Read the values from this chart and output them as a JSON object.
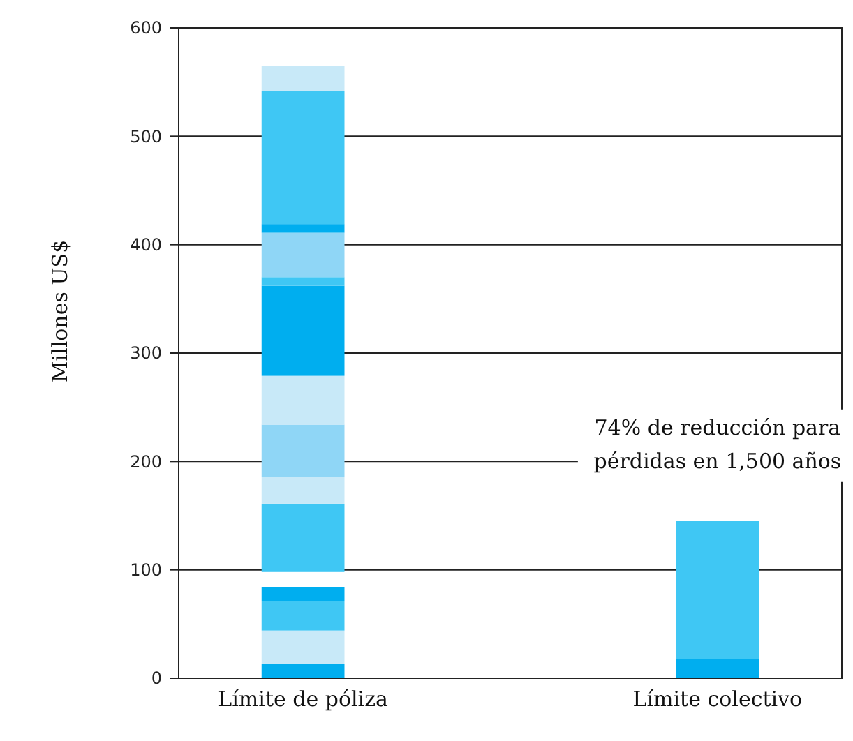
{
  "chart_data": {
    "type": "bar",
    "ylabel": "Millones US$",
    "categories": [
      "Límite de póliza",
      "Límite colectivo"
    ],
    "series": [
      {
        "colors": [
          "#00aeef",
          "#00aeef"
        ],
        "base": [
          0,
          0
        ],
        "values": [
          13,
          18
        ]
      },
      {
        "colors": [
          "#c8e9f8",
          "#3fc7f4"
        ],
        "base": [
          13,
          18
        ],
        "values": [
          31,
          127
        ]
      },
      {
        "color": "#3fc7f4",
        "base": [
          44,
          null
        ],
        "values": [
          27,
          null
        ]
      },
      {
        "color": "#00aeef",
        "base": [
          71,
          null
        ],
        "values": [
          13,
          null
        ]
      },
      {
        "color": "#3fc7f4",
        "base": [
          98,
          null
        ],
        "values": [
          63,
          null
        ]
      },
      {
        "color": "#c8e9f8",
        "base": [
          161,
          null
        ],
        "values": [
          25,
          null
        ]
      },
      {
        "color": "#8fd6f6",
        "base": [
          186,
          null
        ],
        "values": [
          48,
          null
        ]
      },
      {
        "color": "#c8e9f8",
        "base": [
          234,
          null
        ],
        "values": [
          45,
          null
        ]
      },
      {
        "color": "#00aeef",
        "base": [
          279,
          null
        ],
        "values": [
          83,
          null
        ]
      },
      {
        "color": "#3fc7f4",
        "base": [
          362,
          null
        ],
        "values": [
          8,
          null
        ]
      },
      {
        "color": "#8fd6f6",
        "base": [
          370,
          null
        ],
        "values": [
          41,
          null
        ]
      },
      {
        "color": "#00aeef",
        "base": [
          411,
          null
        ],
        "values": [
          8,
          null
        ]
      },
      {
        "color": "#3fc7f4",
        "base": [
          419,
          null
        ],
        "values": [
          123,
          null
        ]
      },
      {
        "color": "#c8e9f8",
        "base": [
          542,
          null
        ],
        "values": [
          23,
          null
        ]
      }
    ],
    "ylim": [
      0,
      600
    ],
    "yticks": [
      0,
      100,
      200,
      300,
      400,
      500,
      600
    ],
    "grid": "y",
    "annotations": [
      "74% de reducción para\npérdidas en 1,500 años"
    ]
  }
}
